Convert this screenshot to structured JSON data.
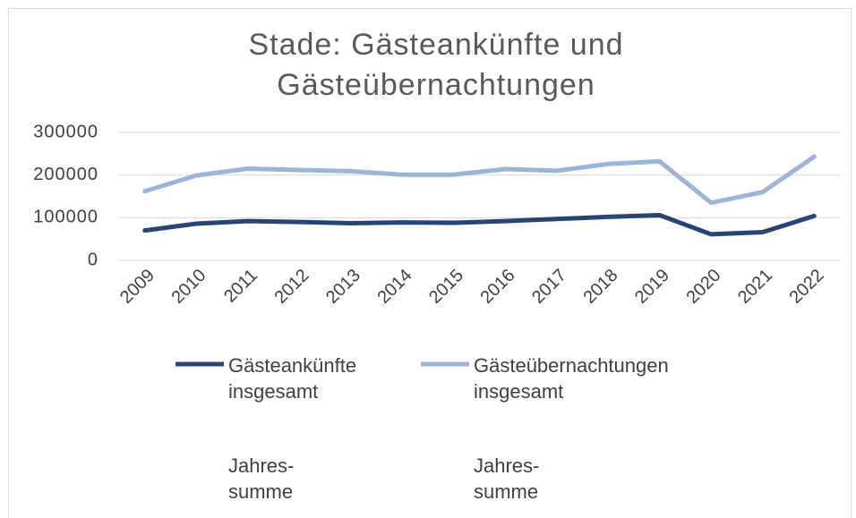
{
  "chart_data": {
    "type": "line",
    "title": "Stade: Gästeankünfte und Gästeübernachtungen",
    "categories": [
      "2009",
      "2010",
      "2011",
      "2012",
      "2013",
      "2014",
      "2015",
      "2016",
      "2017",
      "2018",
      "2019",
      "2020",
      "2021",
      "2022"
    ],
    "series": [
      {
        "name": "Gästeankünfte insgesamt",
        "color": "#264478",
        "note": "Jahres-summe",
        "values": [
          70000,
          86000,
          92000,
          90000,
          87000,
          89000,
          88000,
          92000,
          97000,
          102000,
          106000,
          61000,
          66000,
          104000
        ]
      },
      {
        "name": "Gästeübernachtungen insgesamt",
        "color": "#9bb5d8",
        "note": "Jahres-summe",
        "values": [
          162000,
          199000,
          215000,
          212000,
          209000,
          201000,
          201000,
          214000,
          210000,
          226000,
          232000,
          135000,
          160000,
          243000
        ]
      }
    ],
    "ylim": [
      0,
      300000
    ],
    "yticks": [
      0,
      100000,
      200000,
      300000
    ],
    "grid": true
  }
}
